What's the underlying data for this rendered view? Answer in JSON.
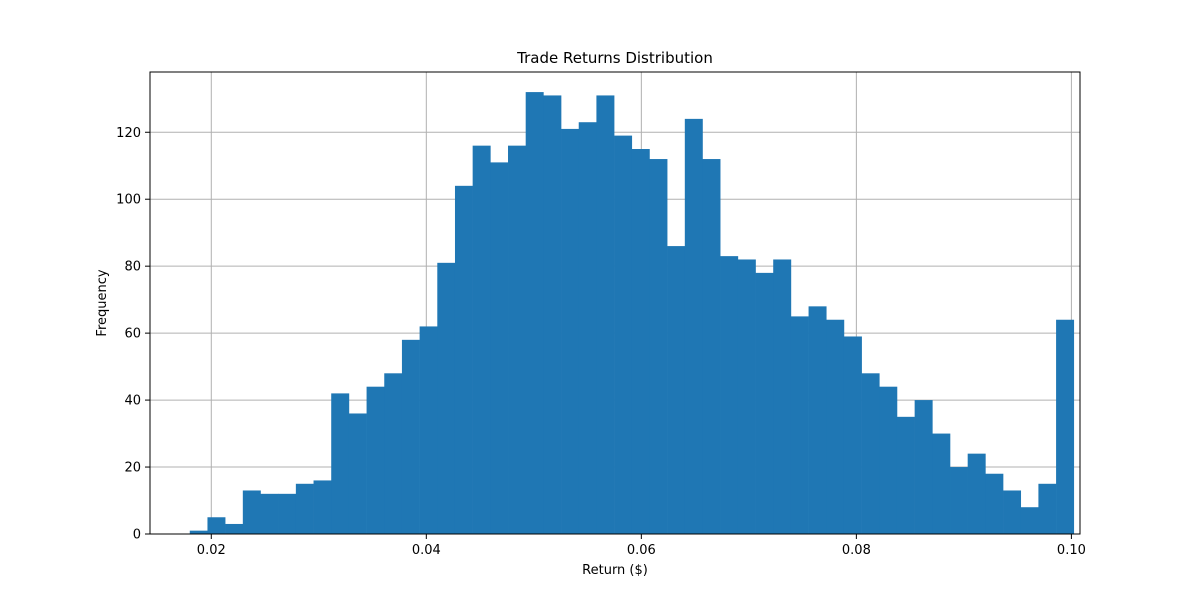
{
  "chart_data": {
    "type": "bar",
    "title": "Trade Returns Distribution",
    "xlabel": "Return ($)",
    "ylabel": "Frequency",
    "xlim": [
      0.0143,
      0.1008
    ],
    "ylim": [
      0,
      138
    ],
    "grid": true,
    "bar_color": "#1f77b4",
    "bin_start": 0.018,
    "bin_width": 0.0016444,
    "values": [
      1,
      5,
      3,
      13,
      12,
      12,
      15,
      16,
      42,
      36,
      44,
      48,
      58,
      62,
      81,
      104,
      116,
      111,
      116,
      132,
      131,
      121,
      123,
      131,
      119,
      115,
      112,
      86,
      124,
      112,
      83,
      82,
      78,
      82,
      65,
      68,
      64,
      59,
      48,
      44,
      35,
      40,
      30,
      20,
      24,
      18,
      13,
      8,
      15,
      64
    ],
    "x_ticks": [
      {
        "value": 0.02,
        "label": "0.02"
      },
      {
        "value": 0.04,
        "label": "0.04"
      },
      {
        "value": 0.06,
        "label": "0.06"
      },
      {
        "value": 0.08,
        "label": "0.08"
      },
      {
        "value": 0.1,
        "label": "0.10"
      }
    ],
    "y_ticks": [
      {
        "value": 0,
        "label": "0"
      },
      {
        "value": 20,
        "label": "20"
      },
      {
        "value": 40,
        "label": "40"
      },
      {
        "value": 60,
        "label": "60"
      },
      {
        "value": 80,
        "label": "80"
      },
      {
        "value": 100,
        "label": "100"
      },
      {
        "value": 120,
        "label": "120"
      }
    ]
  }
}
